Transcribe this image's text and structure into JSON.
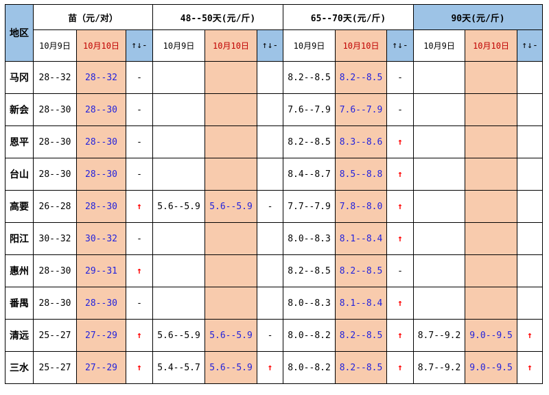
{
  "header": {
    "region": "地区",
    "groups": [
      "苗（元/对）",
      "48--50天(元/斤)",
      "65--70天(元/斤)",
      "90天(元/斤)"
    ],
    "sub": {
      "yesterday": "10月9日",
      "today": "10月10日",
      "trend": "↑↓-"
    }
  },
  "rows": [
    {
      "region": "马冈",
      "c": [
        "28--32",
        "28--32",
        "-",
        "",
        "",
        "",
        "8.2--8.5",
        "8.2--8.5",
        "-",
        "",
        "",
        ""
      ]
    },
    {
      "region": "新会",
      "c": [
        "28--30",
        "28--30",
        "-",
        "",
        "",
        "",
        "7.6--7.9",
        "7.6--7.9",
        "-",
        "",
        "",
        ""
      ]
    },
    {
      "region": "恩平",
      "c": [
        "28--30",
        "28--30",
        "-",
        "",
        "",
        "",
        "8.2--8.5",
        "8.3--8.6",
        "↑",
        "",
        "",
        ""
      ]
    },
    {
      "region": "台山",
      "c": [
        "28--30",
        "28--30",
        "-",
        "",
        "",
        "",
        "8.4--8.7",
        "8.5--8.8",
        "↑",
        "",
        "",
        ""
      ]
    },
    {
      "region": "高要",
      "c": [
        "26--28",
        "28--30",
        "↑",
        "5.6--5.9",
        "5.6--5.9",
        "-",
        "7.7--7.9",
        "7.8--8.0",
        "↑",
        "",
        "",
        ""
      ]
    },
    {
      "region": "阳江",
      "c": [
        "30--32",
        "30--32",
        "-",
        "",
        "",
        "",
        "8.0--8.3",
        "8.1--8.4",
        "↑",
        "",
        "",
        ""
      ]
    },
    {
      "region": "惠州",
      "c": [
        "28--30",
        "29--31",
        "↑",
        "",
        "",
        "",
        "8.2--8.5",
        "8.2--8.5",
        "-",
        "",
        "",
        ""
      ]
    },
    {
      "region": "番禺",
      "c": [
        "28--30",
        "28--30",
        "-",
        "",
        "",
        "",
        "8.0--8.3",
        "8.1--8.4",
        "↑",
        "",
        "",
        ""
      ]
    },
    {
      "region": "清远",
      "c": [
        "25--27",
        "27--29",
        "↑",
        "5.6--5.9",
        "5.6--5.9",
        "-",
        "8.0--8.2",
        "8.2--8.5",
        "↑",
        "8.7--9.2",
        "9.0--9.5",
        "↑"
      ]
    },
    {
      "region": "三水",
      "c": [
        "25--27",
        "27--29",
        "↑",
        "5.4--5.7",
        "5.6--5.9",
        "↑",
        "8.0--8.2",
        "8.2--8.5",
        "↑",
        "8.7--9.2",
        "9.0--9.5",
        "↑"
      ]
    }
  ],
  "colors": {
    "today_bg": "#f8cbad",
    "today_text": "#2222dd",
    "header_blue": "#9dc3e6",
    "up_arrow": "#ff0000",
    "today_header_text": "#c00000"
  }
}
